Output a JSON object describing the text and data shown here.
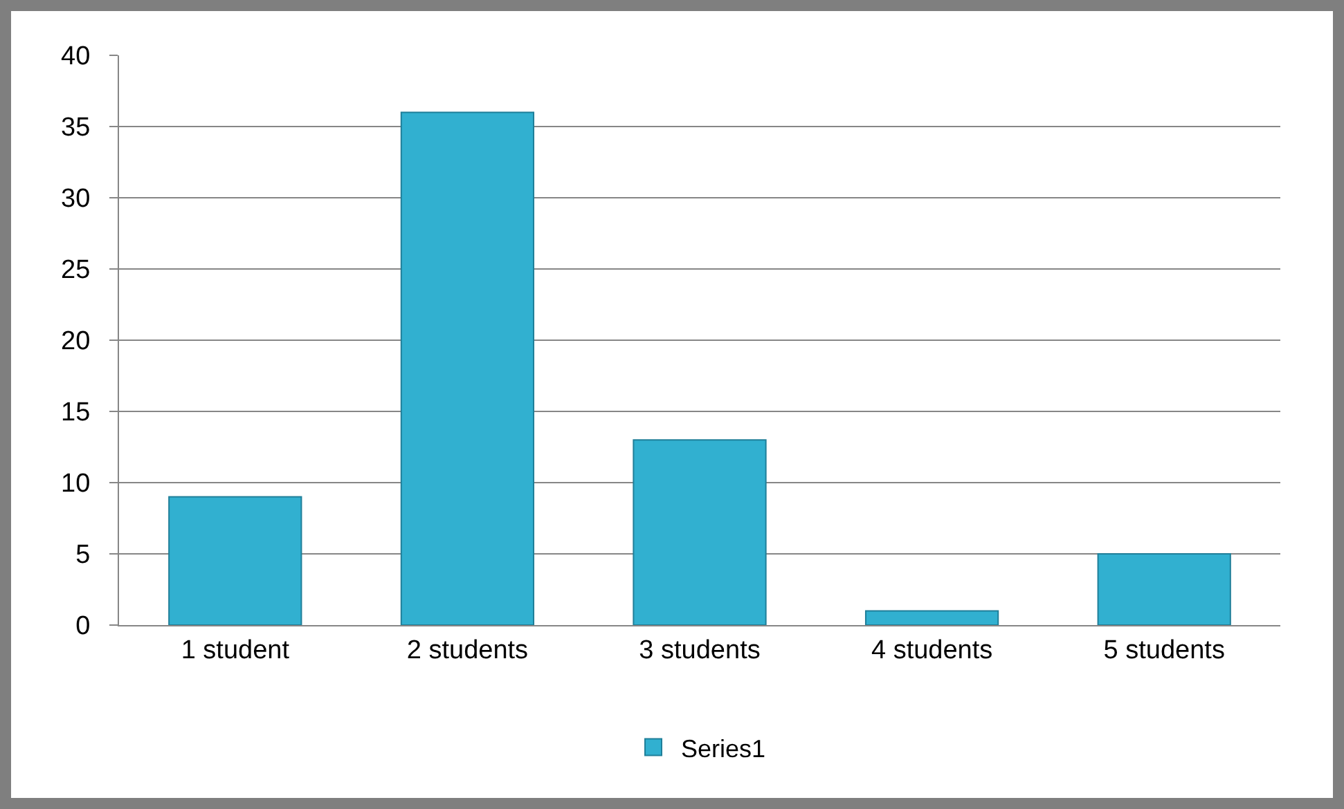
{
  "chart_data": {
    "type": "bar",
    "categories": [
      "1 student",
      "2 students",
      "3 students",
      "4 students",
      "5 students"
    ],
    "series": [
      {
        "name": "Series1",
        "color": "#31b0d0",
        "values": [
          9,
          36,
          13,
          1,
          5
        ]
      }
    ],
    "ylim": [
      0,
      40
    ],
    "yticks": [
      0,
      5,
      10,
      15,
      20,
      25,
      30,
      35,
      40
    ],
    "grid": "y",
    "legend": "bottom"
  }
}
